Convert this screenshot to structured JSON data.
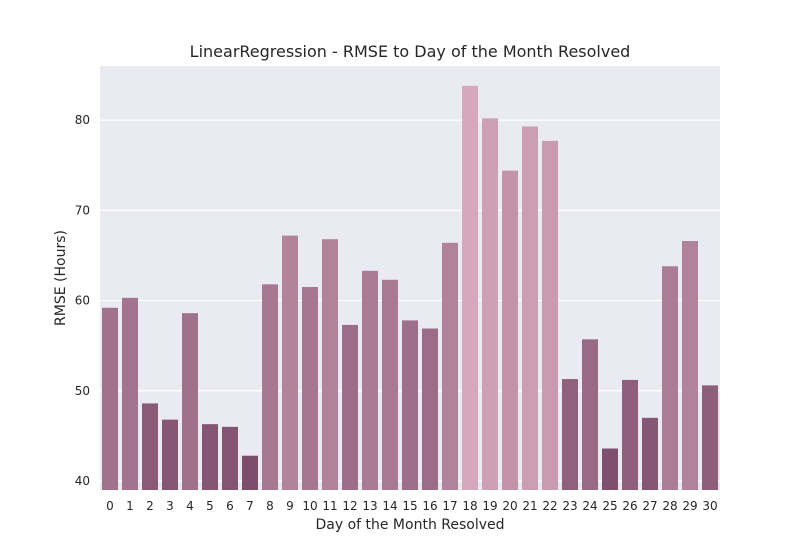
{
  "chart_data": {
    "type": "bar",
    "title": "LinearRegression - RMSE to Day of the Month Resolved",
    "xlabel": "Day of the Month Resolved",
    "ylabel": "RMSE (Hours)",
    "categories": [
      "0",
      "1",
      "2",
      "3",
      "4",
      "5",
      "6",
      "7",
      "8",
      "9",
      "10",
      "11",
      "12",
      "13",
      "14",
      "15",
      "16",
      "17",
      "18",
      "19",
      "20",
      "21",
      "22",
      "23",
      "24",
      "25",
      "26",
      "27",
      "28",
      "29",
      "30"
    ],
    "values": [
      59.2,
      60.3,
      48.6,
      46.8,
      58.6,
      46.3,
      46.0,
      42.8,
      61.8,
      67.2,
      61.5,
      66.8,
      57.3,
      63.3,
      62.3,
      57.8,
      56.9,
      66.4,
      83.8,
      80.2,
      74.4,
      79.3,
      77.7,
      51.3,
      55.7,
      43.6,
      51.2,
      47.0,
      63.8,
      66.6,
      50.6
    ],
    "ylim": [
      39,
      86
    ],
    "yticks": [
      40,
      50,
      60,
      70,
      80
    ],
    "grid": true,
    "colors": {
      "low": "#7d4e6c",
      "high": "#d6a8bd",
      "plot_background": "#eaeaf2",
      "grid": "#ffffff",
      "text": "#262626"
    }
  }
}
